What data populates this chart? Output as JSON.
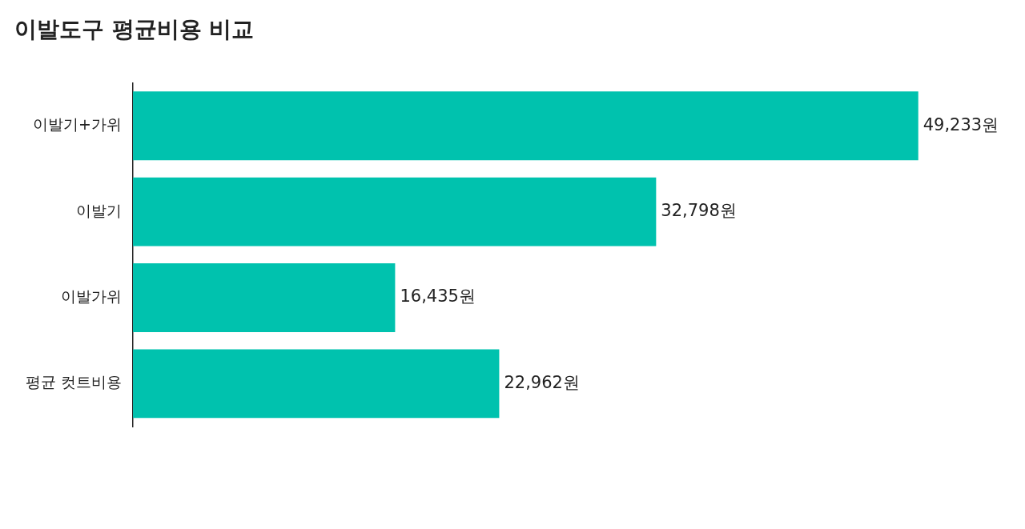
{
  "chart_data": {
    "type": "bar",
    "orientation": "horizontal",
    "title": "이발도구 평균비용 비교",
    "categories": [
      "이발기+가위",
      "이발기",
      "이발가위",
      "평균 컷트비용"
    ],
    "values": [
      49233,
      32798,
      16435,
      22962
    ],
    "value_labels": [
      "49,233원",
      "32,798원",
      "16,435원",
      "22,962원"
    ],
    "color": "#00c2ae",
    "grid": false,
    "legend": false
  }
}
